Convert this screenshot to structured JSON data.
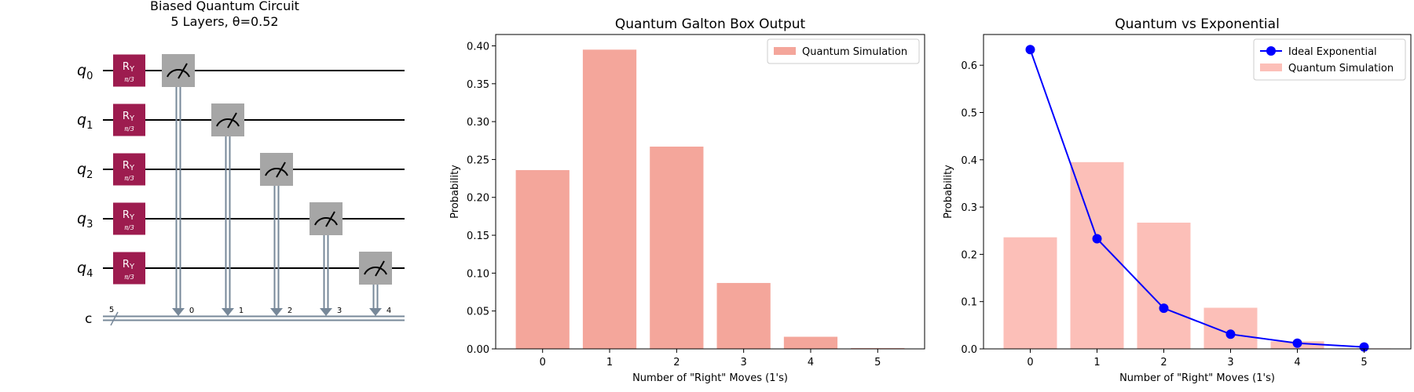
{
  "circuit": {
    "title_line1": "Biased Quantum Circuit",
    "title_line2": "5 Layers, θ=0.52",
    "qubit_prefix": "q",
    "qubits": [
      "0",
      "1",
      "2",
      "3",
      "4"
    ],
    "classical_label": "c",
    "classical_width": "5",
    "gate_name": "R",
    "gate_sub": "Y",
    "gate_param": "π/3",
    "clbit_indices": [
      "0",
      "1",
      "2",
      "3",
      "4"
    ],
    "colors": {
      "gate": "#9d1c4f",
      "measure": "#a6a6a6",
      "cwire": "#778899"
    }
  },
  "chart_data": [
    {
      "type": "bar",
      "title": "Quantum Galton Box Output",
      "xlabel": "Number of \"Right\" Moves (1's)",
      "ylabel": "Probability",
      "categories": [
        0,
        1,
        2,
        3,
        4,
        5
      ],
      "series": [
        {
          "name": "Quantum Simulation",
          "values": [
            0.236,
            0.395,
            0.267,
            0.087,
            0.016,
            0.001
          ],
          "color": "#f08070",
          "alpha": 0.7
        }
      ],
      "ylim": [
        0,
        0.415
      ],
      "yticks": [
        0.0,
        0.05,
        0.1,
        0.15,
        0.2,
        0.25,
        0.3,
        0.35,
        0.4
      ],
      "xlim": [
        -0.7,
        5.7
      ],
      "legend": "top-right",
      "grid": false
    },
    {
      "type": "bar+line",
      "title": "Quantum vs Exponential",
      "xlabel": "Number of \"Right\" Moves (1's)",
      "ylabel": "Probability",
      "categories": [
        0,
        1,
        2,
        3,
        4,
        5
      ],
      "series": [
        {
          "name": "Ideal Exponential",
          "kind": "line",
          "values": [
            0.633,
            0.233,
            0.086,
            0.031,
            0.012,
            0.004
          ],
          "color": "#0000ff"
        },
        {
          "name": "Quantum Simulation",
          "kind": "bar",
          "values": [
            0.236,
            0.395,
            0.267,
            0.087,
            0.016,
            0.001
          ],
          "color": "#fa8072",
          "alpha": 0.5
        }
      ],
      "ylim": [
        0,
        0.665
      ],
      "yticks": [
        0.0,
        0.1,
        0.2,
        0.3,
        0.4,
        0.5,
        0.6
      ],
      "xlim": [
        -0.7,
        5.7
      ],
      "legend": "top-right",
      "grid": false
    }
  ]
}
